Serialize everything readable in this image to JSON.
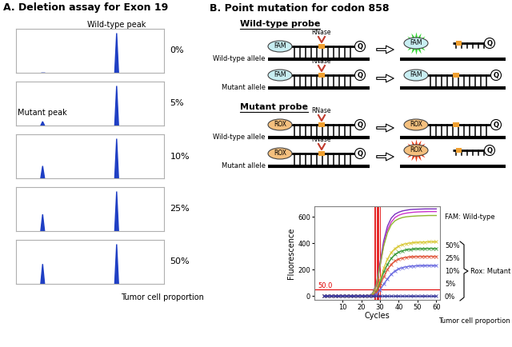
{
  "figure": {
    "panel_a": {
      "title": "A. Deletion assay for Exon 19",
      "x_label": "Tumor cell proportion"
    },
    "panel_b": {
      "title": "B. Point mutation for codon 858"
    },
    "diagram": {
      "probes": [
        {
          "probe": "Wild-type probe",
          "dye": "FAM",
          "quencher": "Q",
          "enzyme": "RNase",
          "alleles": [
            "Wild-type allele",
            "Mutant allele"
          ],
          "signal_allele": "Wild-type allele",
          "colors": [
            "#c8eef2",
            "#33d633"
          ]
        },
        {
          "probe": "Mutant probe",
          "dye": "ROX",
          "quencher": "Q",
          "enzyme": "RNase",
          "alleles": [
            "Wild-type allele",
            "Mutant allele"
          ],
          "signal_allele": "Mutant allele",
          "colors": [
            "#f5c07e",
            "#e8401c"
          ]
        }
      ]
    }
  },
  "chart_data": [
    {
      "type": "peaks",
      "title": "0%",
      "x": [
        18,
        68
      ],
      "values": [
        0,
        90
      ],
      "color": "#1f3fc4",
      "xlim": [
        0,
        100
      ],
      "ylim": [
        0,
        100
      ],
      "tick_labels": false,
      "annotations": [
        {
          "text": "Wild-type peak",
          "peak": 1
        }
      ]
    },
    {
      "type": "peaks",
      "title": "5%",
      "x": [
        18,
        68
      ],
      "values": [
        9,
        90
      ],
      "color": "#1f3fc4",
      "xlim": [
        0,
        100
      ],
      "ylim": [
        0,
        100
      ],
      "tick_labels": false,
      "annotations": [
        {
          "text": "Mutant peak",
          "peak": 0
        }
      ]
    },
    {
      "type": "peaks",
      "title": "10%",
      "x": [
        18,
        68
      ],
      "values": [
        28,
        90
      ],
      "color": "#1f3fc4",
      "xlim": [
        0,
        100
      ],
      "ylim": [
        0,
        100
      ],
      "tick_labels": false
    },
    {
      "type": "peaks",
      "title": "25%",
      "x": [
        18,
        68
      ],
      "values": [
        38,
        90
      ],
      "color": "#1f3fc4",
      "xlim": [
        0,
        100
      ],
      "ylim": [
        0,
        100
      ],
      "tick_labels": false
    },
    {
      "type": "peaks",
      "title": "50%",
      "x": [
        18,
        68
      ],
      "values": [
        45,
        90
      ],
      "color": "#1f3fc4",
      "xlim": [
        0,
        100
      ],
      "ylim": [
        0,
        100
      ],
      "tick_labels": false
    },
    {
      "type": "line",
      "x_label": "Cycles",
      "y_label": "Fluorescence",
      "x": [
        0,
        2,
        4,
        6,
        8,
        10,
        12,
        14,
        16,
        18,
        20,
        22,
        24,
        26,
        28,
        30,
        32,
        34,
        36,
        38,
        40,
        42,
        44,
        46,
        48,
        50,
        52,
        54,
        56,
        58,
        60
      ],
      "xlim": [
        -5,
        62
      ],
      "ylim": [
        -30,
        680
      ],
      "xticks": [
        10,
        20,
        30,
        40,
        50,
        60
      ],
      "yticks": [
        0,
        200,
        400,
        600
      ],
      "threshold": {
        "value": 50,
        "label": "50.0",
        "color": "#e00000"
      },
      "ct_lines": [
        27.0,
        27.4,
        28.3,
        28.6,
        29.2,
        30.2
      ],
      "annotations": {
        "wild_type": "FAM: Wild-type",
        "mutant": "Rox: Mutant",
        "proportion": "Tumor cell proportion"
      },
      "series": [
        {
          "color": "#7b2fbf",
          "values": [
            0,
            0,
            0,
            0,
            0,
            0,
            0,
            0,
            0,
            0,
            0,
            0,
            0,
            20,
            90,
            250,
            420,
            530,
            590,
            620,
            635,
            645,
            650,
            655,
            657,
            658,
            659,
            660,
            660,
            660,
            660
          ]
        },
        {
          "color": "#cc33cc",
          "values": [
            0,
            0,
            0,
            0,
            0,
            0,
            0,
            0,
            0,
            0,
            0,
            0,
            0,
            10,
            70,
            220,
            390,
            500,
            560,
            595,
            612,
            622,
            628,
            632,
            635,
            637,
            638,
            639,
            640,
            640,
            640
          ]
        },
        {
          "color": "#8fb832",
          "values": [
            0,
            0,
            0,
            0,
            0,
            0,
            0,
            0,
            0,
            0,
            0,
            0,
            0,
            15,
            80,
            230,
            380,
            480,
            540,
            570,
            585,
            595,
            600,
            603,
            605,
            607,
            608,
            609,
            610,
            610,
            610
          ]
        },
        {
          "name": "50%",
          "color": "#d9c93a",
          "marker": "x",
          "values": [
            0,
            0,
            0,
            0,
            0,
            0,
            0,
            0,
            0,
            0,
            0,
            0,
            0,
            5,
            40,
            120,
            210,
            280,
            330,
            360,
            378,
            390,
            397,
            401,
            404,
            406,
            408,
            409,
            410,
            410,
            410
          ]
        },
        {
          "name": "25%",
          "color": "#3a9a3a",
          "marker": "x",
          "values": [
            0,
            0,
            0,
            0,
            0,
            0,
            0,
            0,
            0,
            0,
            0,
            0,
            0,
            3,
            30,
            100,
            180,
            240,
            285,
            315,
            332,
            343,
            350,
            353,
            356,
            357,
            358,
            359,
            360,
            360,
            360
          ]
        },
        {
          "name": "10%",
          "color": "#e0553a",
          "marker": "x",
          "values": [
            0,
            0,
            0,
            0,
            0,
            0,
            0,
            0,
            0,
            0,
            0,
            0,
            0,
            2,
            22,
            80,
            145,
            200,
            240,
            265,
            280,
            288,
            293,
            296,
            298,
            299,
            300,
            300,
            300,
            300,
            300
          ]
        },
        {
          "name": "5%",
          "color": "#6a6ae0",
          "marker": "x",
          "values": [
            0,
            0,
            0,
            0,
            0,
            0,
            0,
            0,
            0,
            0,
            0,
            0,
            0,
            0,
            10,
            45,
            90,
            130,
            165,
            190,
            205,
            215,
            221,
            225,
            227,
            228,
            229,
            230,
            230,
            230,
            230
          ]
        },
        {
          "name": "0%",
          "color": "#333399",
          "marker": "x",
          "values": [
            0,
            0,
            0,
            0,
            0,
            0,
            0,
            0,
            0,
            0,
            0,
            0,
            0,
            0,
            0,
            0,
            0,
            0,
            0,
            0,
            0,
            0,
            0,
            0,
            0,
            0,
            0,
            0,
            0,
            0,
            0
          ]
        }
      ]
    }
  ]
}
